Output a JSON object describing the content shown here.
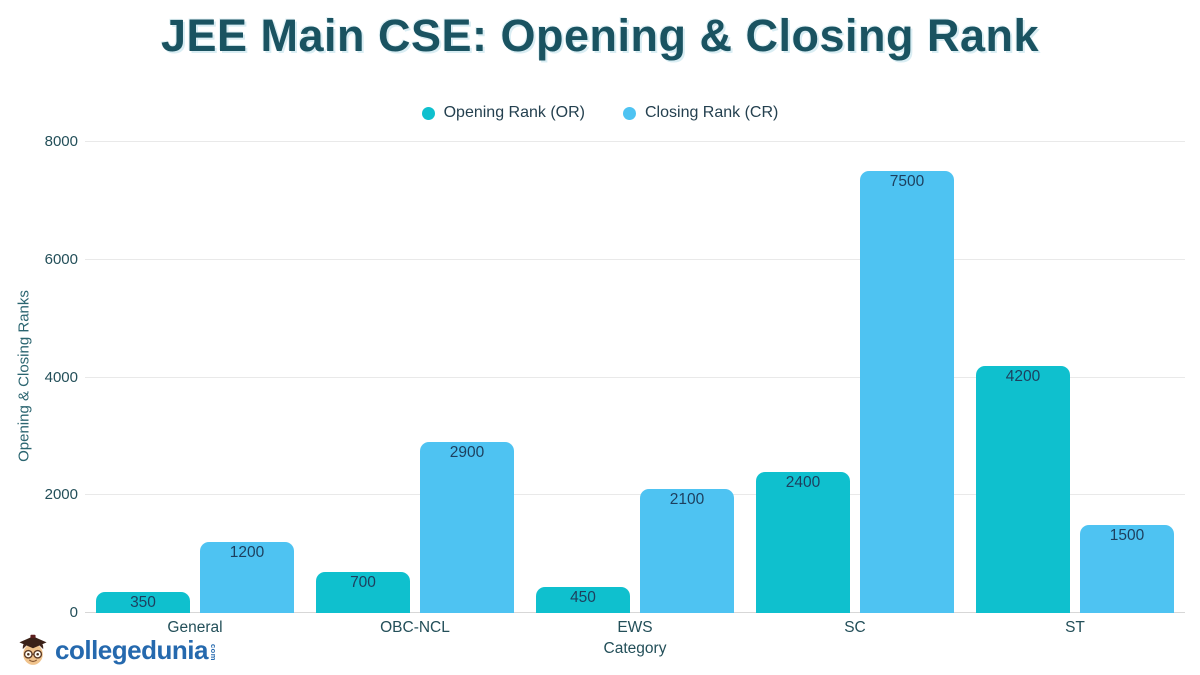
{
  "title": "JEE Main CSE: Opening & Closing Rank",
  "chart_data": {
    "type": "bar",
    "title": "JEE Main CSE: Opening & Closing Rank",
    "categories": [
      "General",
      "OBC-NCL",
      "EWS",
      "SC",
      "ST"
    ],
    "series": [
      {
        "name": "Opening Rank (OR)",
        "color": "#0fc0ce",
        "values": [
          350,
          700,
          450,
          2400,
          4200
        ]
      },
      {
        "name": "Closing Rank (CR)",
        "color": "#4ec3f2",
        "values": [
          1200,
          2900,
          2100,
          7500,
          1500
        ]
      }
    ],
    "xlabel": "Category",
    "ylabel": "Opening & Closing Ranks",
    "ylim": [
      0,
      8000
    ],
    "yticks": [
      0,
      2000,
      4000,
      6000,
      8000
    ],
    "grid": true,
    "legend_position": "top",
    "bar_labels": true
  },
  "branding": {
    "logo_text": "collegedunia",
    "logo_tld": "com"
  }
}
